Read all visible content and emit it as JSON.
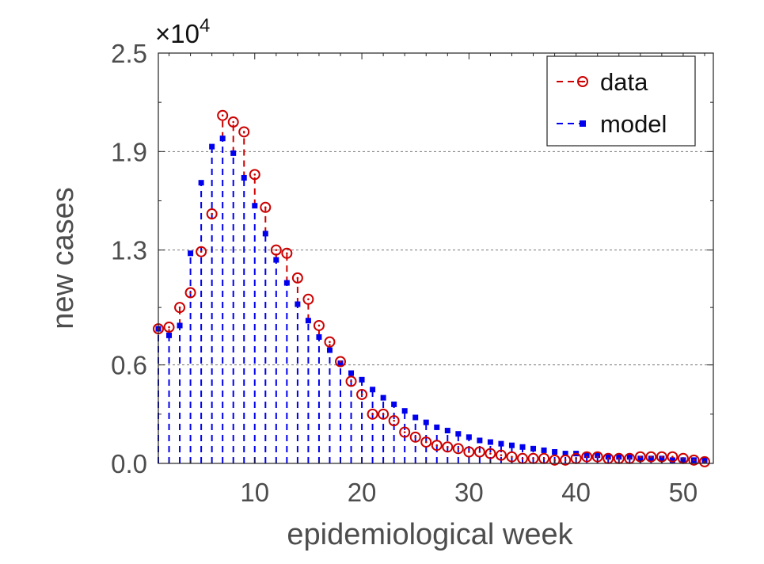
{
  "chart_data": {
    "type": "line",
    "title": "",
    "xlabel": "epidemiological week",
    "ylabel": "new cases",
    "y_multiplier_label": "×10",
    "y_multiplier_exponent": "4",
    "xlim": [
      1,
      52
    ],
    "ylim": [
      0,
      2.5
    ],
    "x_ticks": [
      10,
      20,
      30,
      40,
      50
    ],
    "y_ticks": [
      0.0,
      0.6,
      1.3,
      1.9,
      2.5
    ],
    "y_tick_labels": [
      "0.0",
      "0.6",
      "1.3",
      "1.9",
      "2.5"
    ],
    "grid": "horizontal dashed at y ticks",
    "legend_position": "top-right",
    "x": [
      1,
      2,
      3,
      4,
      5,
      6,
      7,
      8,
      9,
      10,
      11,
      12,
      13,
      14,
      15,
      16,
      17,
      18,
      19,
      20,
      21,
      22,
      23,
      24,
      25,
      26,
      27,
      28,
      29,
      30,
      31,
      32,
      33,
      34,
      35,
      36,
      37,
      38,
      39,
      40,
      41,
      42,
      43,
      44,
      45,
      46,
      47,
      48,
      49,
      50,
      51,
      52
    ],
    "series": [
      {
        "name": "data",
        "color": "#cc0000",
        "marker": "circle",
        "values": [
          0.82,
          0.83,
          0.95,
          1.04,
          1.29,
          1.52,
          2.12,
          2.08,
          2.02,
          1.76,
          1.56,
          1.3,
          1.28,
          1.13,
          1.0,
          0.84,
          0.74,
          0.62,
          0.5,
          0.42,
          0.3,
          0.3,
          0.26,
          0.19,
          0.16,
          0.13,
          0.11,
          0.1,
          0.09,
          0.07,
          0.07,
          0.06,
          0.05,
          0.04,
          0.03,
          0.03,
          0.03,
          0.02,
          0.02,
          0.03,
          0.04,
          0.04,
          0.03,
          0.03,
          0.03,
          0.04,
          0.04,
          0.04,
          0.04,
          0.03,
          0.02,
          0.01
        ]
      },
      {
        "name": "model",
        "color": "#0000ee",
        "marker": "square",
        "values": [
          0.82,
          0.78,
          0.84,
          1.28,
          1.71,
          1.93,
          1.98,
          1.89,
          1.74,
          1.57,
          1.4,
          1.24,
          1.1,
          0.97,
          0.87,
          0.77,
          0.69,
          0.61,
          0.55,
          0.51,
          0.45,
          0.4,
          0.36,
          0.32,
          0.28,
          0.25,
          0.22,
          0.2,
          0.18,
          0.16,
          0.14,
          0.13,
          0.12,
          0.11,
          0.1,
          0.09,
          0.08,
          0.07,
          0.06,
          0.06,
          0.05,
          0.05,
          0.04,
          0.04,
          0.04,
          0.03,
          0.03,
          0.03,
          0.02,
          0.02,
          0.02,
          0.02
        ]
      }
    ]
  }
}
